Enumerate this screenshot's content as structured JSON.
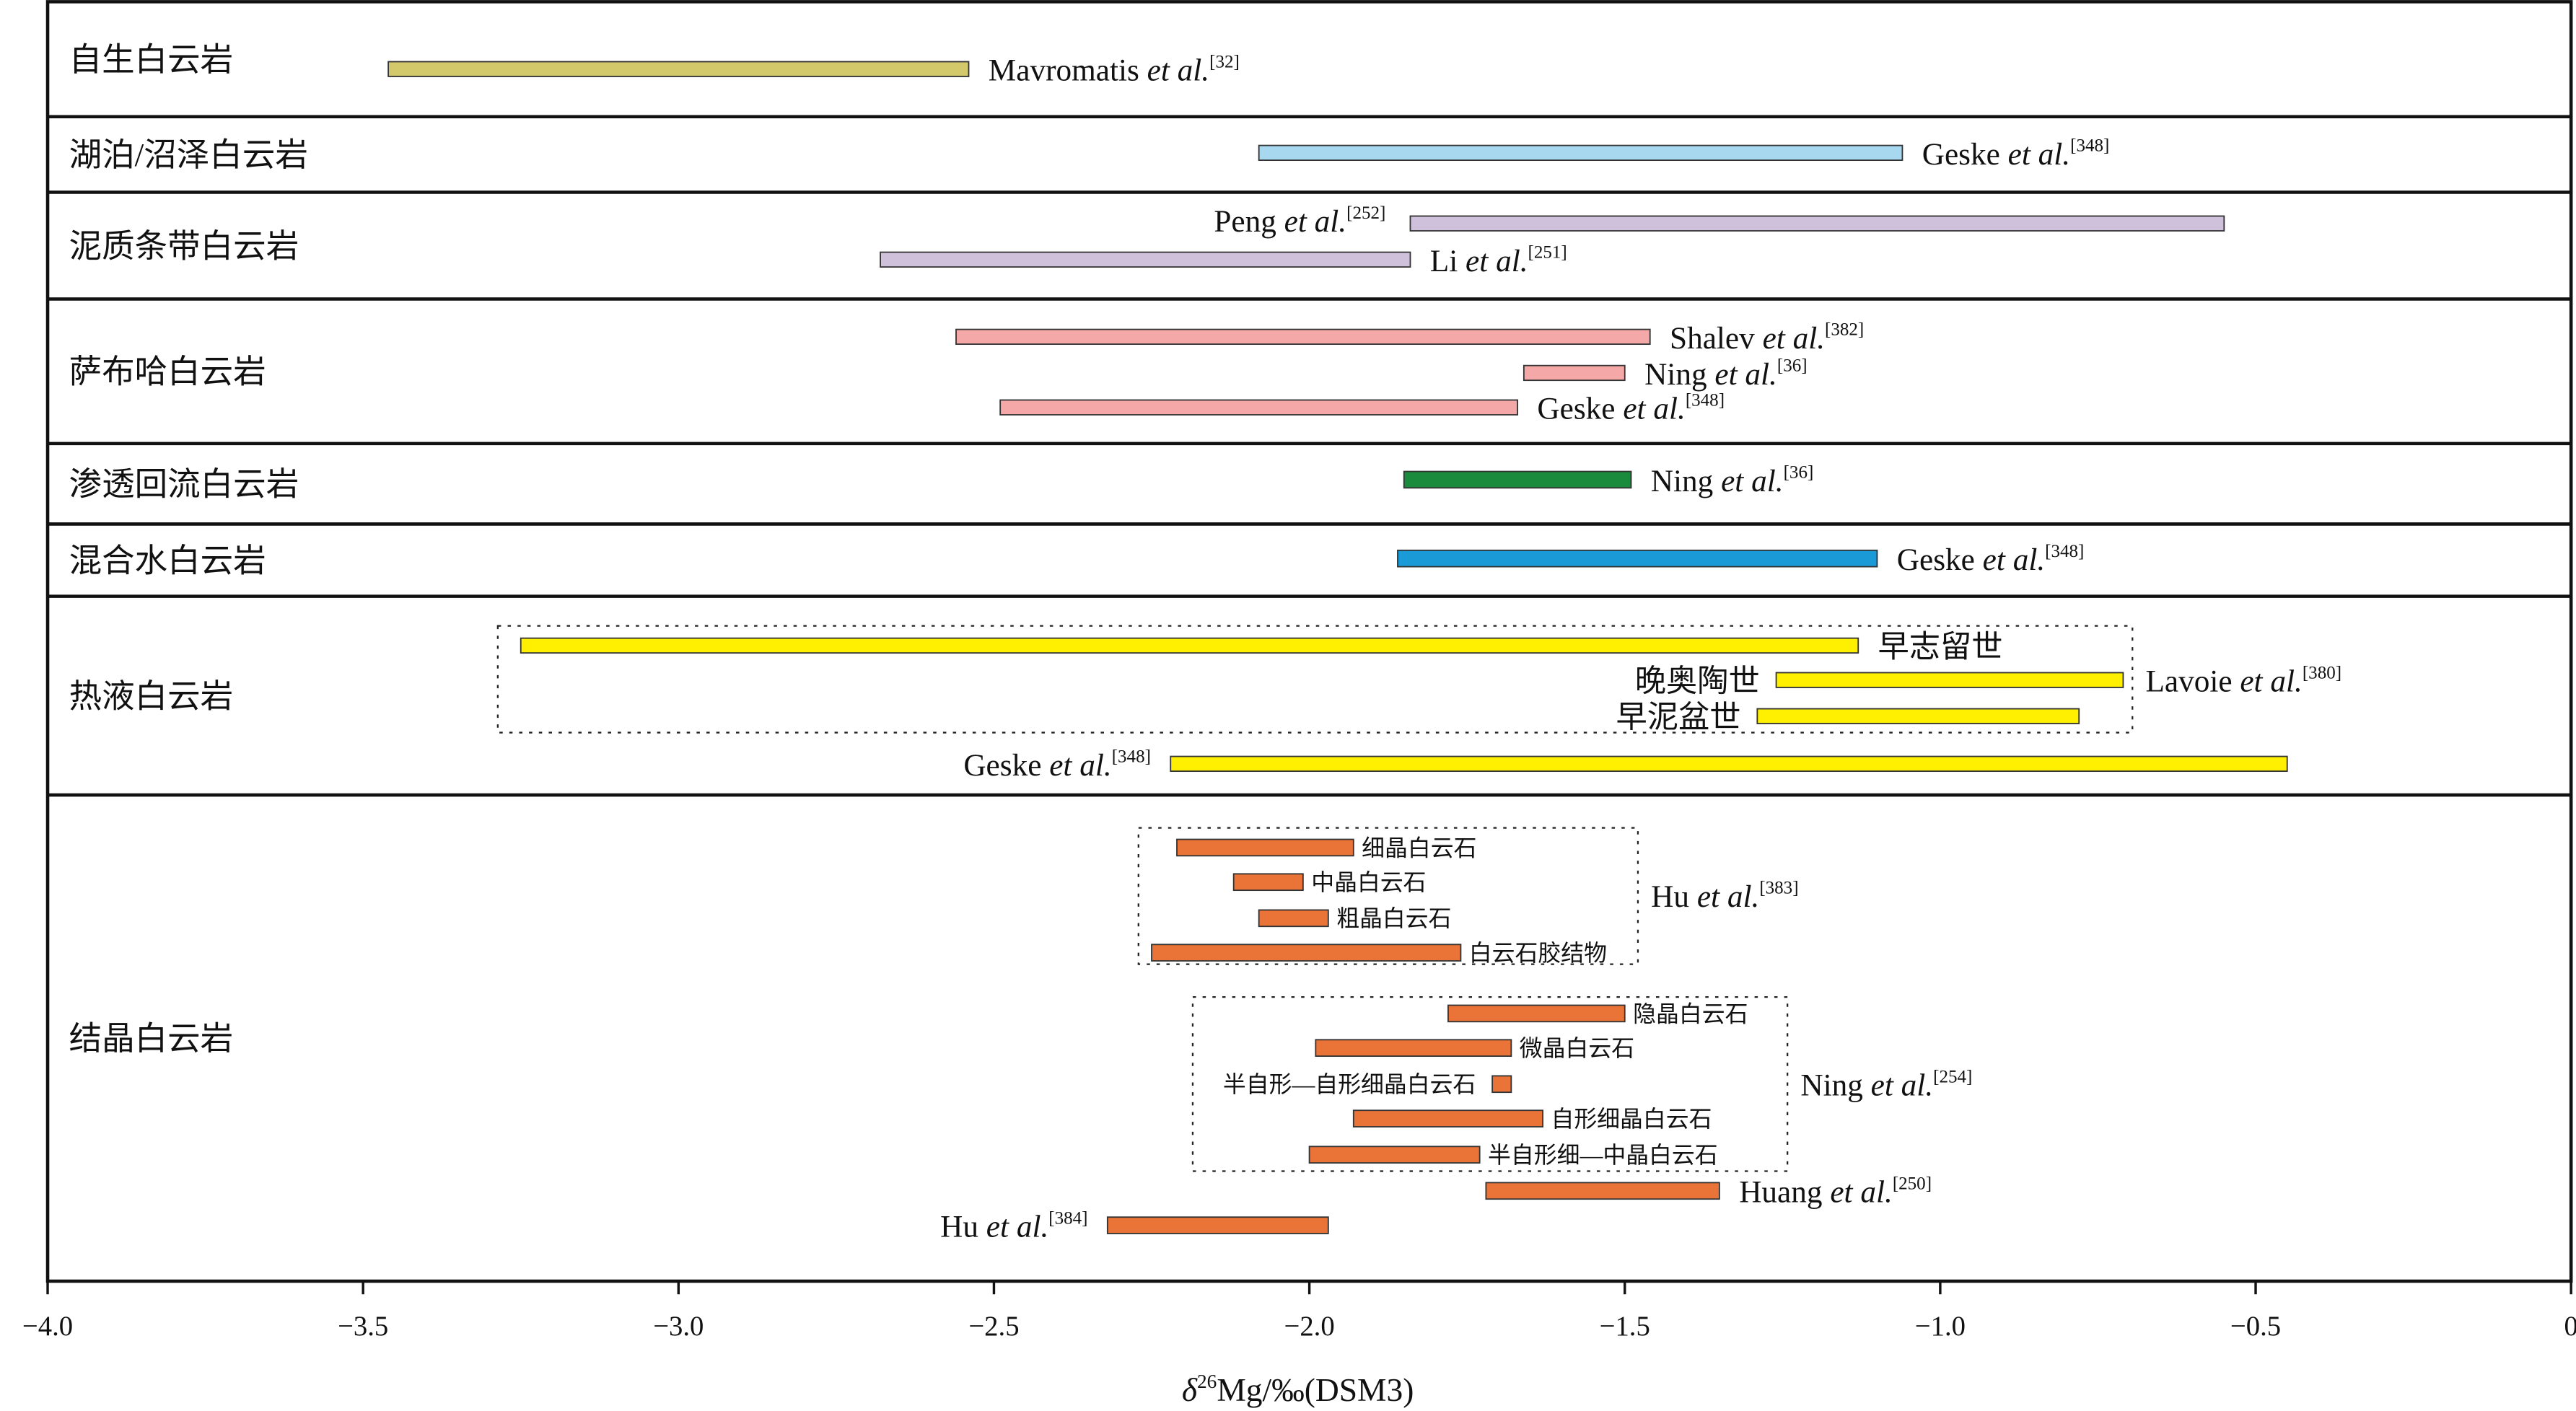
{
  "chart_data": {
    "type": "range-bar",
    "xlabel": "δ26Mg/‰(DSM3)",
    "xlabel_parts": {
      "prefix": "δ",
      "sup": "26",
      "rest": "Mg/‰(DSM3)"
    },
    "xlim": [
      -4.0,
      0
    ],
    "xticks": [
      "-4.0",
      "-3.5",
      "-3.0",
      "-2.5",
      "-2.0",
      "-1.5",
      "-1.0",
      "-0.5",
      "0"
    ],
    "grid": false,
    "rows": [
      {
        "label": "自生白云岩",
        "bars": [
          {
            "min": -3.46,
            "max": -2.54,
            "color": "#d4c96a",
            "author": "Mavromatis",
            "etal": "et al.",
            "ref": "[32]",
            "side": "right"
          }
        ]
      },
      {
        "label": "湖泊/沼泽白云岩",
        "bars": [
          {
            "min": -2.08,
            "max": -1.06,
            "color": "#a8d8ef",
            "author": "Geske",
            "etal": "et al.",
            "ref": "[348]",
            "side": "right"
          }
        ]
      },
      {
        "label": "泥质条带白云岩",
        "bars": [
          {
            "min": -1.84,
            "max": -0.55,
            "color": "#cfc1dc",
            "author": "Peng",
            "etal": "et al.",
            "ref": "[252]",
            "side": "left-above"
          },
          {
            "min": -2.68,
            "max": -1.84,
            "color": "#cfc1dc",
            "author": "Li",
            "etal": "et al.",
            "ref": "[251]",
            "side": "right"
          }
        ]
      },
      {
        "label": "萨布哈白云岩",
        "bars": [
          {
            "min": -2.56,
            "max": -1.46,
            "color": "#f4a9a8",
            "author": "Shalev",
            "etal": "et al.",
            "ref": "[382]",
            "side": "right"
          },
          {
            "min": -1.66,
            "max": -1.5,
            "color": "#f4a9a8",
            "author": "Ning",
            "etal": "et al.",
            "ref": "[36]",
            "side": "right"
          },
          {
            "min": -2.49,
            "max": -1.67,
            "color": "#f4a9a8",
            "author": "Geske",
            "etal": "et al.",
            "ref": "[348]",
            "side": "right"
          }
        ]
      },
      {
        "label": "渗透回流白云岩",
        "bars": [
          {
            "min": -1.85,
            "max": -1.49,
            "color": "#1a8a3c",
            "author": "Ning",
            "etal": "et al.",
            "ref": "[36]",
            "side": "right"
          }
        ]
      },
      {
        "label": "混合水白云岩",
        "bars": [
          {
            "min": -1.86,
            "max": -1.1,
            "color": "#1a9ad6",
            "author": "Geske",
            "etal": "et al.",
            "ref": "[348]",
            "side": "right"
          }
        ]
      },
      {
        "label": "热液白云岩",
        "bars": [
          {
            "min": -3.25,
            "max": -1.13,
            "color": "#ffef00",
            "text": "早志留世",
            "side": "right"
          },
          {
            "min": -1.26,
            "max": -0.71,
            "color": "#ffef00",
            "text": "晚奥陶世",
            "side": "left"
          },
          {
            "min": -1.29,
            "max": -0.78,
            "color": "#ffef00",
            "text": "早泥盆世",
            "side": "left"
          },
          {
            "min": -2.22,
            "max": -0.45,
            "color": "#ffef00",
            "author": "Geske",
            "etal": "et al.",
            "ref": "[348]",
            "side": "left"
          }
        ],
        "groups": [
          {
            "author": "Lavoie",
            "etal": "et al.",
            "ref": "[380]",
            "bars": [
              0,
              1,
              2
            ]
          }
        ]
      },
      {
        "label": "结晶白云岩",
        "bars": [
          {
            "min": -2.21,
            "max": -1.93,
            "color": "#ea7338",
            "text": "细晶白云石",
            "side": "right"
          },
          {
            "min": -2.12,
            "max": -2.01,
            "color": "#ea7338",
            "text": "中晶白云石",
            "side": "right"
          },
          {
            "min": -2.08,
            "max": -1.97,
            "color": "#ea7338",
            "text": "粗晶白云石",
            "side": "right"
          },
          {
            "min": -2.25,
            "max": -1.76,
            "color": "#ea7338",
            "text": "白云石胶结物",
            "side": "right"
          },
          {
            "min": -1.78,
            "max": -1.5,
            "color": "#ea7338",
            "text": "隐晶白云石",
            "side": "right"
          },
          {
            "min": -1.99,
            "max": -1.68,
            "color": "#ea7338",
            "text": "微晶白云石",
            "side": "right"
          },
          {
            "min": -1.71,
            "max": -1.68,
            "color": "#ea7338",
            "text": "半自形—自形细晶白云石",
            "side": "left"
          },
          {
            "min": -1.93,
            "max": -1.63,
            "color": "#ea7338",
            "text": "自形细晶白云石",
            "side": "right"
          },
          {
            "min": -2.0,
            "max": -1.73,
            "color": "#ea7338",
            "text": "半自形细—中晶白云石",
            "side": "right"
          },
          {
            "min": -1.72,
            "max": -1.35,
            "color": "#ea7338",
            "author": "Huang",
            "etal": "et al.",
            "ref": "[250]",
            "side": "right"
          },
          {
            "min": -2.32,
            "max": -1.97,
            "color": "#ea7338",
            "author": "Hu",
            "etal": "et al.",
            "ref": "[384]",
            "side": "left"
          }
        ],
        "groups": [
          {
            "author": "Hu",
            "etal": "et al.",
            "ref": "[383]",
            "bars": [
              0,
              1,
              2,
              3
            ]
          },
          {
            "author": "Ning",
            "etal": "et al.",
            "ref": "[254]",
            "bars": [
              4,
              5,
              6,
              7,
              8
            ]
          }
        ]
      }
    ]
  }
}
